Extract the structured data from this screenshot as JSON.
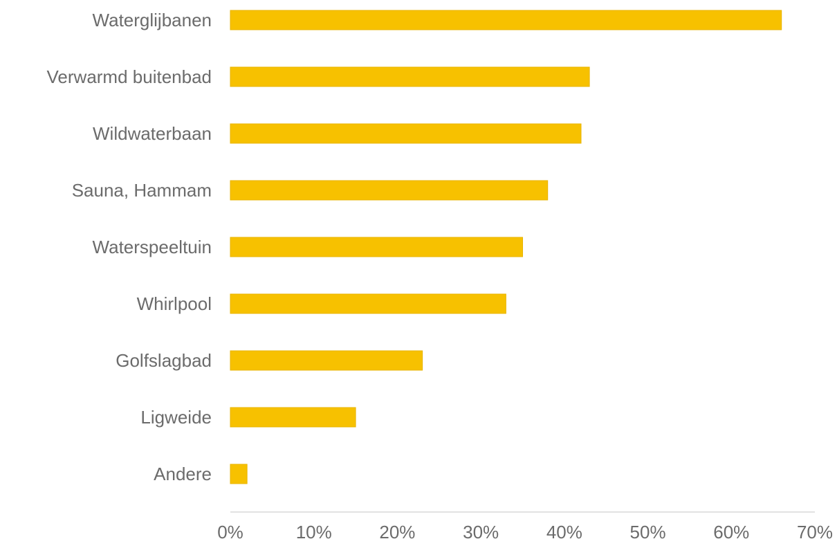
{
  "chart_data": {
    "type": "bar",
    "orientation": "horizontal",
    "categories": [
      "Waterglijbanen",
      "Verwarmd buitenbad",
      "Wildwaterbaan",
      "Sauna, Hammam",
      "Waterspeeltuin",
      "Whirlpool",
      "Golfslagbad",
      "Ligweide",
      "Andere"
    ],
    "values": [
      66,
      43,
      42,
      38,
      35,
      33,
      23,
      15,
      2
    ],
    "xlim": [
      0,
      70
    ],
    "xticks": [
      0,
      10,
      20,
      30,
      40,
      50,
      60,
      70
    ],
    "tick_labels": [
      "0%",
      "10%",
      "20%",
      "30%",
      "40%",
      "50%",
      "60%",
      "70%"
    ],
    "unit": "%",
    "grid": false,
    "legend": "none",
    "colors": {
      "bar": "#F7C100",
      "bar_edge": "#E8B400",
      "axis": "#d9d9d9",
      "text": "#6b6b6b"
    }
  }
}
